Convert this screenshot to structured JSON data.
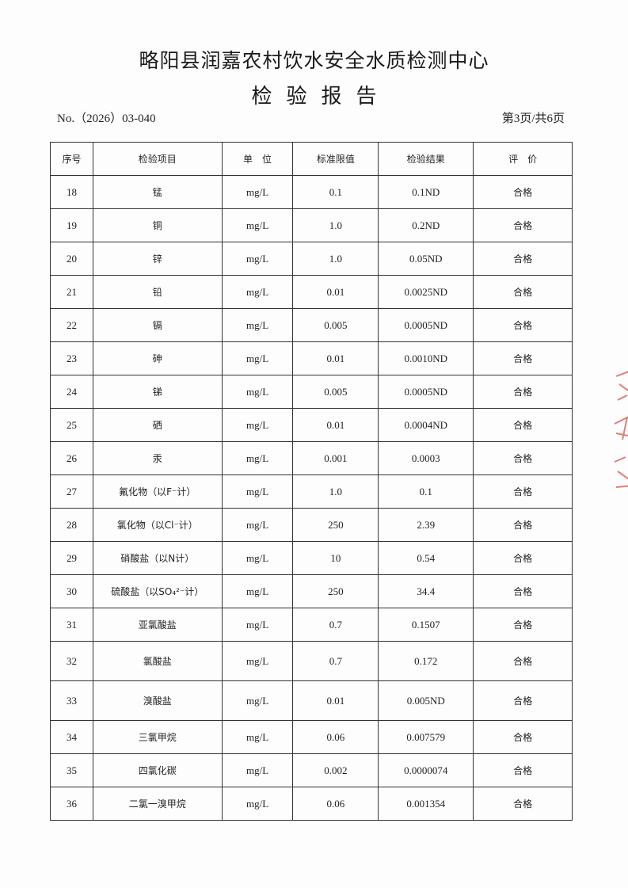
{
  "header": {
    "org": "略阳县润嘉农村饮水安全水质检测中心",
    "title": "检验报告",
    "report_no": "No.（2026）03-040",
    "page_info": "第3页/共6页"
  },
  "table": {
    "columns": [
      "序号",
      "检验项目",
      "单　位",
      "标准限值",
      "检验结果",
      "评　价"
    ],
    "rows": [
      [
        "18",
        "锰",
        "mg/L",
        "0.1",
        "0.1ND",
        "合格"
      ],
      [
        "19",
        "铜",
        "mg/L",
        "1.0",
        "0.2ND",
        "合格"
      ],
      [
        "20",
        "锌",
        "mg/L",
        "1.0",
        "0.05ND",
        "合格"
      ],
      [
        "21",
        "铅",
        "mg/L",
        "0.01",
        "0.0025ND",
        "合格"
      ],
      [
        "22",
        "镉",
        "mg/L",
        "0.005",
        "0.0005ND",
        "合格"
      ],
      [
        "23",
        "砷",
        "mg/L",
        "0.01",
        "0.0010ND",
        "合格"
      ],
      [
        "24",
        "锑",
        "mg/L",
        "0.005",
        "0.0005ND",
        "合格"
      ],
      [
        "25",
        "硒",
        "mg/L",
        "0.01",
        "0.0004ND",
        "合格"
      ],
      [
        "26",
        "汞",
        "mg/L",
        "0.001",
        "0.0003",
        "合格"
      ],
      [
        "27",
        "氟化物（以F⁻计）",
        "mg/L",
        "1.0",
        "0.1",
        "合格"
      ],
      [
        "28",
        "氯化物（以Cl⁻计）",
        "mg/L",
        "250",
        "2.39",
        "合格"
      ],
      [
        "29",
        "硝酸盐（以N计）",
        "mg/L",
        "10",
        "0.54",
        "合格"
      ],
      [
        "30",
        "硫酸盐（以SO₄²⁻计）",
        "mg/L",
        "250",
        "34.4",
        "合格"
      ],
      [
        "31",
        "亚氯酸盐",
        "mg/L",
        "0.7",
        "0.1507",
        "合格"
      ],
      [
        "32",
        "氯酸盐",
        "mg/L",
        "0.7",
        "0.172",
        "合格"
      ],
      [
        "33",
        "溴酸盐",
        "mg/L",
        "0.01",
        "0.005ND",
        "合格"
      ],
      [
        "34",
        "三氯甲烷",
        "mg/L",
        "0.06",
        "0.007579",
        "合格"
      ],
      [
        "35",
        "四氯化碳",
        "mg/L",
        "0.002",
        "0.0000074",
        "合格"
      ],
      [
        "36",
        "二氯一溴甲烷",
        "mg/L",
        "0.06",
        "0.001354",
        "合格"
      ]
    ]
  },
  "stamp": {
    "color": "#d9473f"
  }
}
